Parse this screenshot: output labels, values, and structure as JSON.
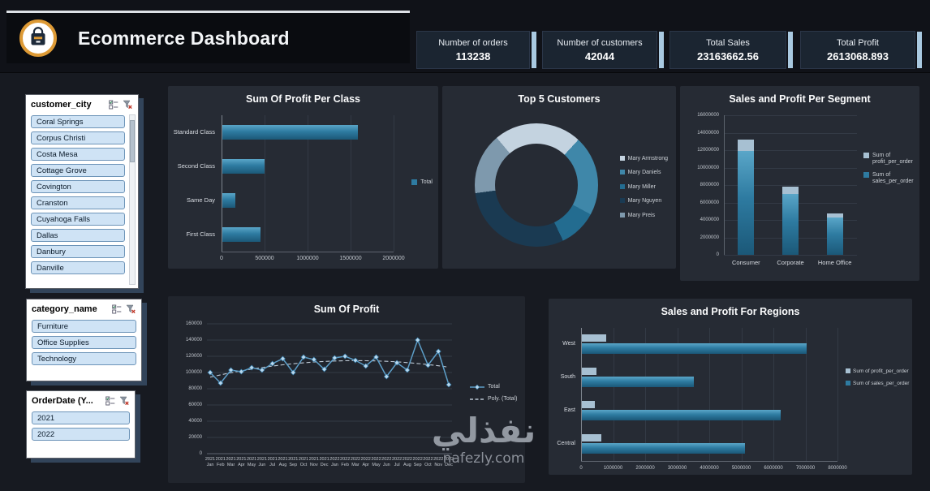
{
  "header": {
    "title": "Ecommerce Dashboard",
    "kpis": [
      {
        "label": "Number of orders",
        "value": "113238"
      },
      {
        "label": "Number of customers",
        "value": "42044"
      },
      {
        "label": "Total Sales",
        "value": "23163662.56"
      },
      {
        "label": "Total Profit",
        "value": "2613068.893"
      }
    ]
  },
  "slicers": [
    {
      "title": "customer_city",
      "scrollbar": true,
      "items": [
        "Coral Springs",
        "Corpus Christi",
        "Costa Mesa",
        "Cottage Grove",
        "Covington",
        "Cranston",
        "Cuyahoga Falls",
        "Dallas",
        "Danbury",
        "Danville"
      ]
    },
    {
      "title": "category_name",
      "scrollbar": false,
      "items": [
        "Furniture",
        "Office Supplies",
        "Technology"
      ]
    },
    {
      "title": "OrderDate (Y...",
      "scrollbar": false,
      "items": [
        "2021",
        "2022"
      ]
    }
  ],
  "watermark": {
    "arabic": "نفذلي",
    "site": "nafezly.com"
  },
  "colors": {
    "bar_teal": "#2e7ba1",
    "profit_light": "#a7c0d2",
    "accent_strip": "#a9c9e0",
    "donut": [
      "#c4d3e0",
      "#3f87a9",
      "#236c90",
      "#1a3a52",
      "#7e99ad"
    ]
  },
  "chart_data": [
    {
      "type": "bar",
      "orientation": "horizontal",
      "title": "Sum Of Profit Per Class",
      "categories": [
        "Standard Class",
        "Second Class",
        "Same Day",
        "First Class"
      ],
      "values": [
        1578000,
        490000,
        147000,
        441000
      ],
      "xlim": [
        0,
        2000000
      ],
      "xticks": [
        "0",
        "500000",
        "1000000",
        "1500000",
        "2000000"
      ],
      "legend": [
        "Total"
      ],
      "grid": true
    },
    {
      "type": "pie",
      "subtype": "donut",
      "title": "Top 5 Customers",
      "categories": [
        "Mary Armstrong",
        "Mary Daniels",
        "Mary Miller",
        "Mary Nguyen",
        "Mary Preis"
      ],
      "values": [
        23,
        21,
        10,
        30,
        16
      ],
      "legend_position": "right"
    },
    {
      "type": "bar",
      "orientation": "vertical",
      "stacked": true,
      "title": "Sales and Profit Per Segment",
      "categories": [
        "Consumer",
        "Corporate",
        "Home Office"
      ],
      "series": [
        {
          "name": "Sum of profit_per_order",
          "values": [
            1340000,
            790000,
            480000
          ]
        },
        {
          "name": "Sum of sales_per_order",
          "values": [
            11900000,
            7000000,
            4260000
          ]
        }
      ],
      "ylim": [
        0,
        16000000
      ],
      "yticks": [
        "0",
        "2000000",
        "4000000",
        "6000000",
        "8000000",
        "10000000",
        "12000000",
        "14000000",
        "16000000"
      ],
      "grid": true
    },
    {
      "type": "line",
      "title": "Sum Of Profit",
      "x": [
        "2021 Jan",
        "2021 Feb",
        "2021 Mar",
        "2021 Apr",
        "2021 May",
        "2021 Jun",
        "2021 Jul",
        "2021 Aug",
        "2021 Sep",
        "2021 Oct",
        "2021 Nov",
        "2021 Dec",
        "2022 Jan",
        "2022 Feb",
        "2022 Mar",
        "2022 Apr",
        "2022 May",
        "2022 Jun",
        "2022 Jul",
        "2022 Aug",
        "2022 Sep",
        "2022 Oct",
        "2022 Nov",
        "2022 Dec"
      ],
      "series": [
        {
          "name": "Total",
          "values": [
            100000,
            87000,
            103000,
            101000,
            106000,
            103000,
            111000,
            117000,
            100000,
            119000,
            116000,
            104000,
            118000,
            120000,
            115000,
            108000,
            119000,
            95000,
            112000,
            103000,
            140000,
            109000,
            126000,
            85000
          ]
        },
        {
          "name": "Poly. (Total)",
          "style": "poly-trend"
        }
      ],
      "ylim": [
        0,
        160000
      ],
      "yticks": [
        "0",
        "20000",
        "40000",
        "60000",
        "80000",
        "100000",
        "120000",
        "140000",
        "160000"
      ],
      "grid": true
    },
    {
      "type": "bar",
      "orientation": "horizontal",
      "grouped": true,
      "title": "Sales and Profit For Regions",
      "categories": [
        "West",
        "South",
        "East",
        "Central"
      ],
      "series": [
        {
          "name": "Sum of profit_per_order",
          "values": [
            750000,
            450000,
            400000,
            600000
          ]
        },
        {
          "name": "Sum of sales_per_order",
          "values": [
            7000000,
            3500000,
            6200000,
            5100000
          ]
        }
      ],
      "xlim": [
        0,
        8000000
      ],
      "xticks": [
        "0",
        "1000000",
        "2000000",
        "3000000",
        "4000000",
        "5000000",
        "6000000",
        "7000000",
        "8000000"
      ],
      "grid": true
    }
  ]
}
